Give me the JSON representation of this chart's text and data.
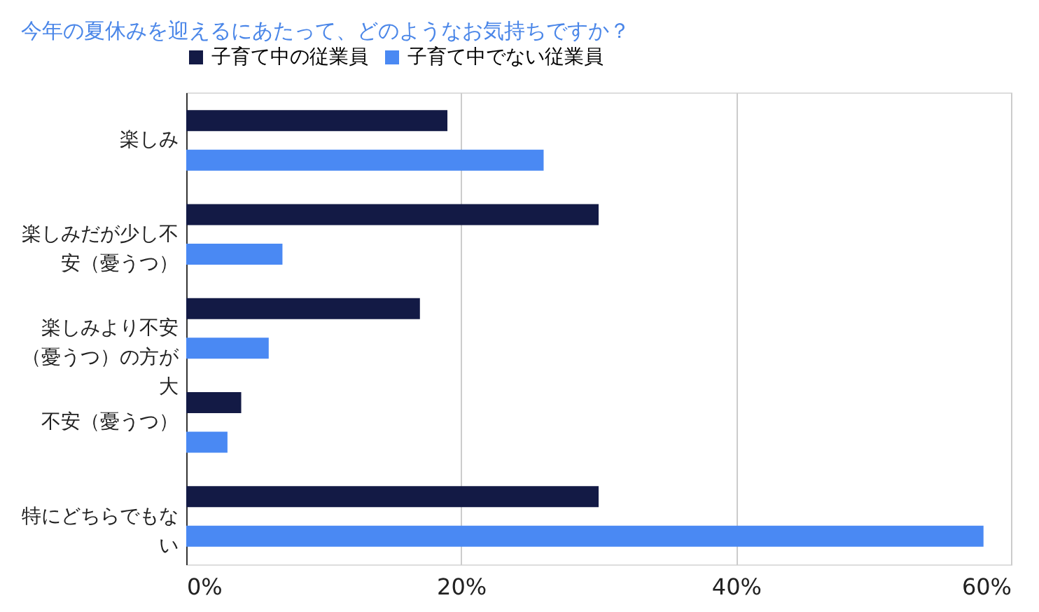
{
  "chart_data": {
    "type": "bar",
    "orientation": "horizontal",
    "title": "今年の夏休みを迎えるにあたって、どのようなお気持ちですか？",
    "categories": [
      "楽しみ",
      "楽しみだが少し不安（憂うつ）",
      "楽しみより不安（憂うつ）の方が大",
      "不安（憂うつ）",
      "特にどちらでもない"
    ],
    "series": [
      {
        "name": "子育て中の従業員",
        "color": "#131a45",
        "values": [
          19,
          30,
          17,
          4,
          30
        ]
      },
      {
        "name": "子育て中でない従業員",
        "color": "#4a89f3",
        "values": [
          26,
          7,
          6,
          3,
          58
        ]
      }
    ],
    "xlim": [
      0,
      60
    ],
    "xticks": [
      {
        "value": 0,
        "label": "0%"
      },
      {
        "value": 20,
        "label": "20%"
      },
      {
        "value": 40,
        "label": "40%"
      },
      {
        "value": 60,
        "label": "60%"
      }
    ],
    "grid": "x",
    "legend": "top"
  }
}
